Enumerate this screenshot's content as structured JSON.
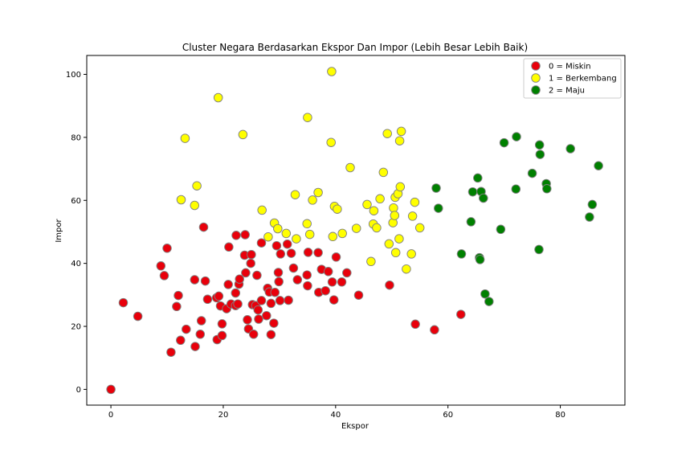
{
  "chart_data": {
    "type": "scatter",
    "title": "Cluster Negara Berdasarkan Ekspor Dan Impor (Lebih Besar Lebih Baik)",
    "xlabel": "Ekspor",
    "ylabel": "Impor",
    "xlim": [
      -4.3,
      91.5
    ],
    "ylim": [
      -5,
      106
    ],
    "xticks": [
      0,
      20,
      40,
      60,
      80
    ],
    "yticks": [
      0,
      20,
      40,
      60,
      80,
      100
    ],
    "grid": false,
    "legend_position": "upper right",
    "series": [
      {
        "name": "0 = Miskin",
        "color": "#e8000b",
        "points": [
          [
            0,
            0
          ],
          [
            2.2,
            27.5
          ],
          [
            4.8,
            23.2
          ],
          [
            8.9,
            39.2
          ],
          [
            9.5,
            36.1
          ],
          [
            10,
            44.8
          ],
          [
            10.7,
            11.8
          ],
          [
            11.7,
            26.3
          ],
          [
            12,
            29.8
          ],
          [
            12.4,
            15.6
          ],
          [
            13.4,
            19.1
          ],
          [
            14.9,
            34.8
          ],
          [
            15,
            13.6
          ],
          [
            15.9,
            17.5
          ],
          [
            16.1,
            21.8
          ],
          [
            16.5,
            51.5
          ],
          [
            16.8,
            34.4
          ],
          [
            17.2,
            28.6
          ],
          [
            18.8,
            29.1
          ],
          [
            19.2,
            29.6
          ],
          [
            18.9,
            15.8
          ],
          [
            19.5,
            26.5
          ],
          [
            19.8,
            17.1
          ],
          [
            19.8,
            20.8
          ],
          [
            20.6,
            25.6
          ],
          [
            20.9,
            33.3
          ],
          [
            21,
            45.2
          ],
          [
            21.4,
            27.1
          ],
          [
            22.2,
            26.6
          ],
          [
            22.2,
            30.6
          ],
          [
            22.3,
            48.9
          ],
          [
            22.6,
            27.1
          ],
          [
            22.8,
            33.4
          ],
          [
            22.9,
            35
          ],
          [
            23.8,
            42.6
          ],
          [
            23.9,
            49.1
          ],
          [
            24,
            37
          ],
          [
            24.3,
            22.1
          ],
          [
            24.5,
            19.2
          ],
          [
            24.9,
            40
          ],
          [
            25,
            42.8
          ],
          [
            25.2,
            26.9
          ],
          [
            25.4,
            17.5
          ],
          [
            25.8,
            26.6
          ],
          [
            26,
            36.2
          ],
          [
            26.3,
            22.3
          ],
          [
            26.2,
            25.2
          ],
          [
            26.8,
            46.5
          ],
          [
            26.8,
            28.2
          ],
          [
            27.7,
            23.4
          ],
          [
            27.9,
            32.1
          ],
          [
            28.2,
            30.9
          ],
          [
            28.5,
            17.4
          ],
          [
            28.5,
            27.3
          ],
          [
            29,
            21
          ],
          [
            29.2,
            30.8
          ],
          [
            29.5,
            45.6
          ],
          [
            29.8,
            37.1
          ],
          [
            29.9,
            34.2
          ],
          [
            30.1,
            28.2
          ],
          [
            30.2,
            43
          ],
          [
            31.4,
            46.1
          ],
          [
            31.6,
            28.3
          ],
          [
            32.1,
            43.2
          ],
          [
            32.5,
            38.5
          ],
          [
            33.2,
            34.8
          ],
          [
            34.9,
            36.3
          ],
          [
            35,
            32.9
          ],
          [
            35.1,
            43.5
          ],
          [
            36.9,
            43.4
          ],
          [
            37,
            30.8
          ],
          [
            37.5,
            38.1
          ],
          [
            38.2,
            31.3
          ],
          [
            38.7,
            37.4
          ],
          [
            39.4,
            34.1
          ],
          [
            39.7,
            28.4
          ],
          [
            40.1,
            42
          ],
          [
            41.1,
            34.1
          ],
          [
            42,
            37
          ],
          [
            44.1,
            29.9
          ],
          [
            49.6,
            33.1
          ],
          [
            54.2,
            20.7
          ],
          [
            57.6,
            18.9
          ],
          [
            62.3,
            23.8
          ]
        ]
      },
      {
        "name": "1 = Berkembang",
        "color": "#ffff00",
        "points": [
          [
            12.5,
            60.2
          ],
          [
            13.2,
            79.7
          ],
          [
            14.9,
            58.4
          ],
          [
            15.3,
            64.6
          ],
          [
            19.1,
            92.6
          ],
          [
            23.5,
            80.9
          ],
          [
            26.9,
            56.9
          ],
          [
            28,
            48.4
          ],
          [
            29.1,
            52.8
          ],
          [
            29.7,
            51
          ],
          [
            31.2,
            49.5
          ],
          [
            32.8,
            61.8
          ],
          [
            33,
            47.8
          ],
          [
            34.9,
            52.6
          ],
          [
            35,
            86.3
          ],
          [
            35.4,
            49.2
          ],
          [
            35.9,
            60.1
          ],
          [
            36.9,
            62.5
          ],
          [
            39.2,
            78.4
          ],
          [
            39.3,
            100.9
          ],
          [
            39.5,
            48.5
          ],
          [
            39.8,
            58.1
          ],
          [
            40.3,
            57.2
          ],
          [
            41.2,
            49.5
          ],
          [
            42.6,
            70.4
          ],
          [
            43.7,
            51.1
          ],
          [
            45.6,
            58.7
          ],
          [
            46.3,
            40.6
          ],
          [
            46.7,
            52.5
          ],
          [
            46.8,
            56.7
          ],
          [
            47.3,
            51.3
          ],
          [
            47.9,
            60.5
          ],
          [
            48.5,
            68.9
          ],
          [
            49.2,
            81.2
          ],
          [
            49.5,
            46.2
          ],
          [
            50.2,
            52.9
          ],
          [
            50.3,
            57.6
          ],
          [
            50.5,
            55.2
          ],
          [
            50.6,
            61
          ],
          [
            50.7,
            43.4
          ],
          [
            51.1,
            62.1
          ],
          [
            51.3,
            47.8
          ],
          [
            51.4,
            78.9
          ],
          [
            51.5,
            64.3
          ],
          [
            51.7,
            81.9
          ],
          [
            52.6,
            38.2
          ],
          [
            53.5,
            43
          ],
          [
            53.7,
            55
          ],
          [
            54.1,
            59.4
          ],
          [
            55,
            51.3
          ]
        ]
      },
      {
        "name": "2 = Maju",
        "color": "#008000",
        "points": [
          [
            57.9,
            63.9
          ],
          [
            58.3,
            57.5
          ],
          [
            62.4,
            43
          ],
          [
            64.1,
            53.2
          ],
          [
            64.4,
            62.7
          ],
          [
            65.3,
            67.1
          ],
          [
            65.6,
            41.8
          ],
          [
            65.7,
            41.2
          ],
          [
            65.9,
            62.8
          ],
          [
            66.3,
            60.7
          ],
          [
            66.6,
            30.3
          ],
          [
            67.3,
            27.9
          ],
          [
            69.4,
            50.8
          ],
          [
            70,
            78.3
          ],
          [
            72.1,
            63.6
          ],
          [
            72.2,
            80.2
          ],
          [
            75,
            68.6
          ],
          [
            76.2,
            44.4
          ],
          [
            76.3,
            77.6
          ],
          [
            76.4,
            74.6
          ],
          [
            77.5,
            65.3
          ],
          [
            77.6,
            63.7
          ],
          [
            81.8,
            76.4
          ],
          [
            85.2,
            54.7
          ],
          [
            85.7,
            58.7
          ],
          [
            86.8,
            71
          ]
        ]
      }
    ]
  }
}
